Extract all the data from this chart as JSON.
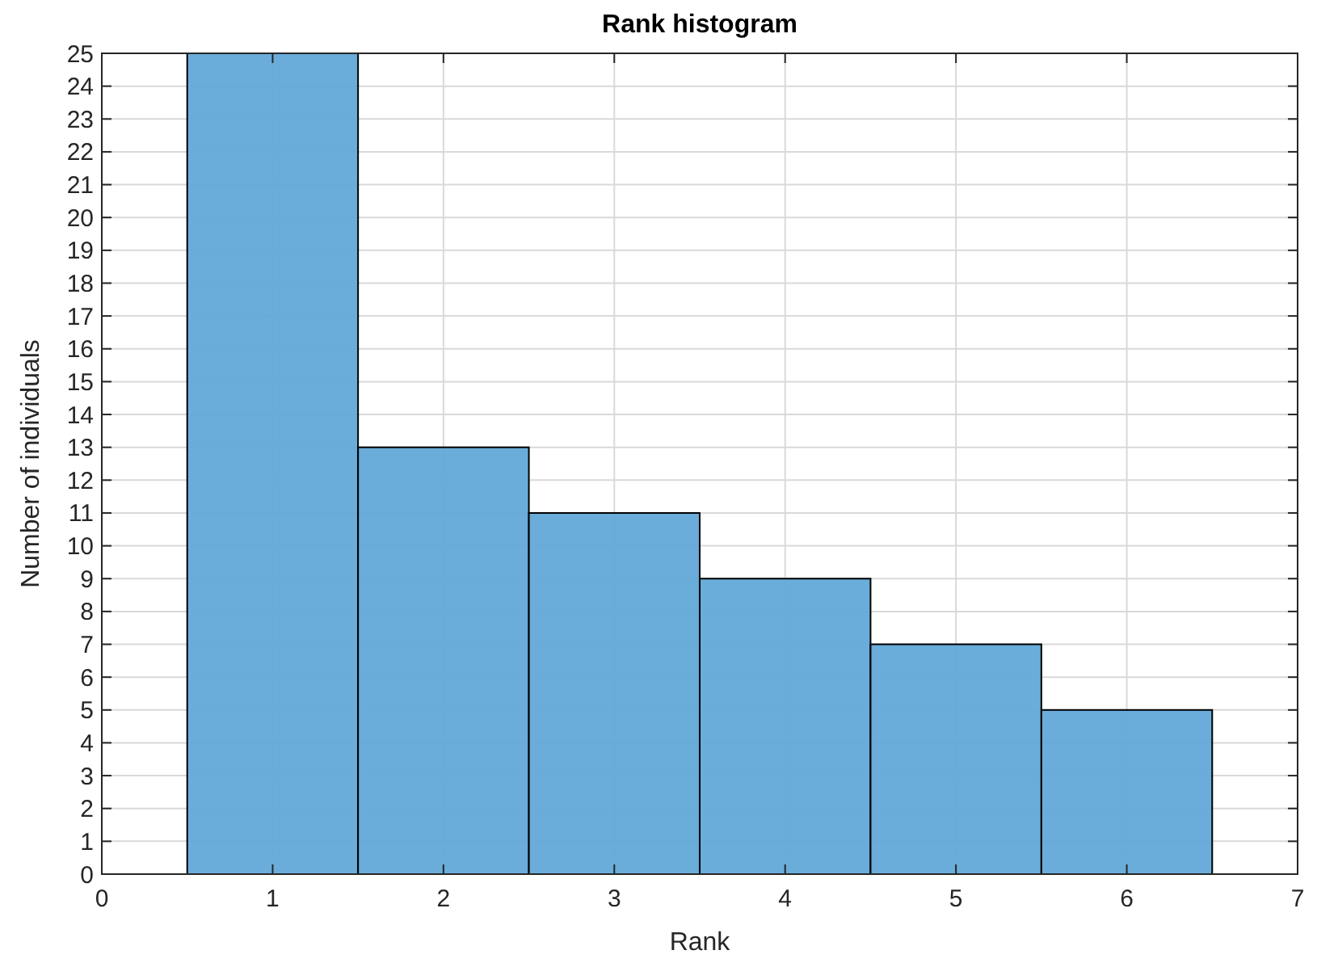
{
  "chart_data": {
    "type": "histogram",
    "title": "Rank histogram",
    "xlabel": "Rank",
    "ylabel": "Number of individuals",
    "bins": [
      0.5,
      1.5,
      2.5,
      3.5,
      4.5,
      5.5,
      6.5
    ],
    "values": [
      25,
      13,
      11,
      9,
      7,
      5
    ],
    "color": "#62a8d8",
    "xlim": [
      0,
      7
    ],
    "xticks": [
      0,
      1,
      2,
      3,
      4,
      5,
      6,
      7
    ],
    "ylim": [
      0,
      25
    ],
    "yticks": [
      0,
      1,
      2,
      3,
      4,
      5,
      6,
      7,
      8,
      9,
      10,
      11,
      12,
      13,
      14,
      15,
      16,
      17,
      18,
      19,
      20,
      21,
      22,
      23,
      24,
      25
    ],
    "grid": true
  }
}
